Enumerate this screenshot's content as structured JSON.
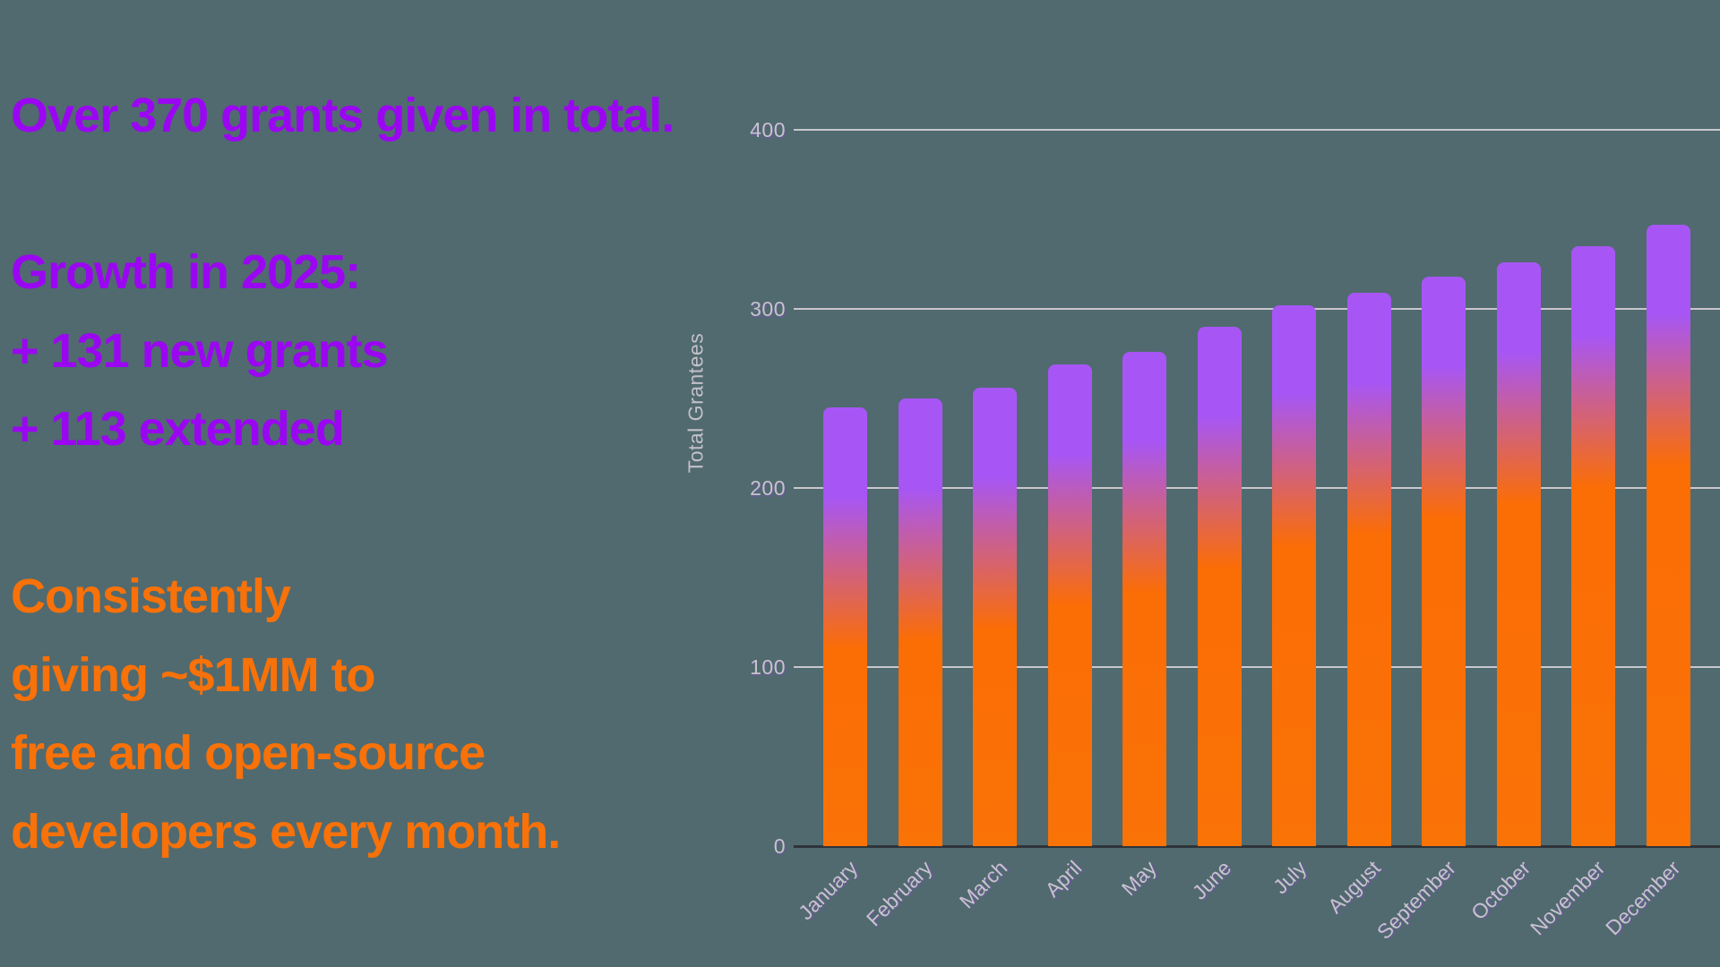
{
  "page": {
    "background": "#506a6f"
  },
  "stats_panel": {
    "purple_color": "#9b06f2",
    "orange_color": "#f87109",
    "lines": [
      {
        "text": "Over 370 grants given in total.",
        "color": "purple"
      },
      {
        "text": "Growth in 2025:",
        "color": "purple"
      },
      {
        "text": "+ 131 new grants",
        "color": "purple"
      },
      {
        "text": "+ 113 extended",
        "color": "purple"
      },
      {
        "text": "Consistently",
        "color": "orange"
      },
      {
        "text": "giving ~$1MM to",
        "color": "orange"
      },
      {
        "text": "free and open-source",
        "color": "orange"
      },
      {
        "text": "developers every month.",
        "color": "orange"
      }
    ]
  },
  "chart_data": {
    "type": "bar",
    "title": "",
    "ylabel": "Total Grantees",
    "xlabel": "",
    "categories": [
      "January",
      "February",
      "March",
      "April",
      "May",
      "June",
      "July",
      "August",
      "September",
      "October",
      "November",
      "December"
    ],
    "values": [
      245,
      250,
      256,
      269,
      276,
      290,
      302,
      309,
      318,
      326,
      335,
      347
    ],
    "yticks": [
      0,
      100,
      200,
      300,
      400
    ],
    "ylim": [
      0,
      400
    ],
    "grid": true,
    "legend_position": "none",
    "bar_gradient_top_color": "#a756f5",
    "bar_gradient_bottom_color": "#fb6d05",
    "gridline_color": "#c9c7cd",
    "zero_axis_color": "#2f343a",
    "tick_label_color": "#c6c4cb",
    "axis_title_color": "#c3c0c8"
  }
}
